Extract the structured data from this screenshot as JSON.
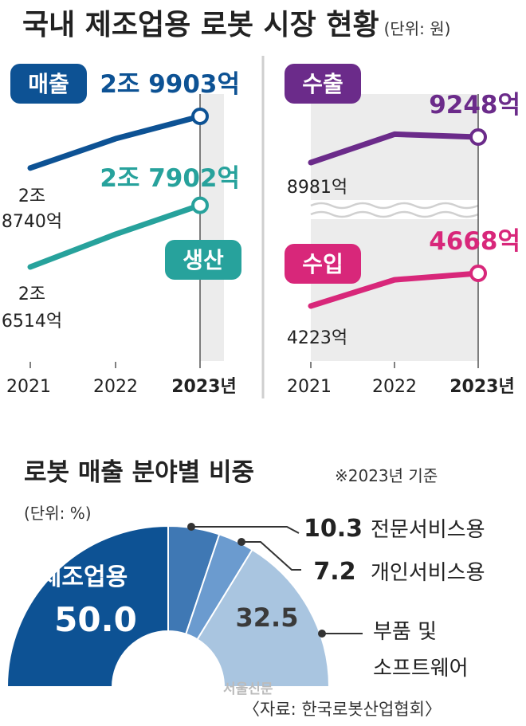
{
  "header": {
    "title": "국내 제조업용 로봇 시장 현황",
    "unit": "(단위: 원)"
  },
  "colors": {
    "sales": "#0d5294",
    "production": "#27a29c",
    "export": "#6b2b8a",
    "import": "#d8277a",
    "shade": "#ececec",
    "text": "#222222"
  },
  "chart_data": [
    {
      "type": "line",
      "x": [
        "2021",
        "2022",
        "2023년"
      ],
      "series": [
        {
          "name": "매출",
          "values": [
            28740,
            29400,
            29903
          ],
          "start_label": [
            "2조",
            "8740억"
          ],
          "end_label": "2조 9903억"
        },
        {
          "name": "생산",
          "values": [
            26514,
            27250,
            27902
          ],
          "start_label": [
            "2조",
            "6514억"
          ],
          "end_label": "2조 7902억"
        }
      ]
    },
    {
      "type": "line",
      "x": [
        "2021",
        "2022",
        "2023년"
      ],
      "axis_break": true,
      "series": [
        {
          "name": "수출",
          "values": [
            8981,
            9278,
            9248
          ],
          "start_label": [
            "8981억"
          ],
          "end_label": "9248억"
        },
        {
          "name": "수입",
          "values": [
            4223,
            4580,
            4668
          ],
          "start_label": [
            "4223억"
          ],
          "end_label": "4668억"
        }
      ]
    },
    {
      "type": "pie",
      "title": "로봇 매출 분야별 비중",
      "note": "※2023년 기준",
      "unit": "(단위: %)",
      "slices": [
        {
          "name": "제조업용",
          "value": 50.0,
          "label": "50.0",
          "color": "#0d5294"
        },
        {
          "name": "전문서비스용",
          "value": 10.3,
          "label": "10.3",
          "color": "#3f78b4"
        },
        {
          "name": "개인서비스용",
          "value": 7.2,
          "label": "7.2",
          "color": "#6b9bcf"
        },
        {
          "name": "부품 및 소프트웨어",
          "value": 32.5,
          "label": "32.5",
          "color": "#a9c5e0"
        }
      ]
    }
  ],
  "footer": {
    "watermark": "서울신문",
    "source": "〈자료: 한국로봇산업협회〉"
  }
}
